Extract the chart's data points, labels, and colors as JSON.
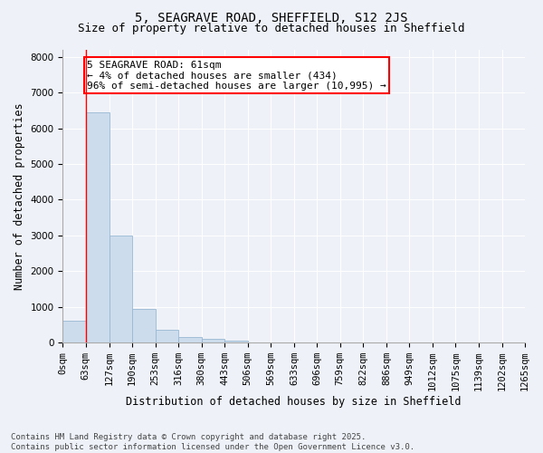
{
  "title1": "5, SEAGRAVE ROAD, SHEFFIELD, S12 2JS",
  "title2": "Size of property relative to detached houses in Sheffield",
  "xlabel": "Distribution of detached houses by size in Sheffield",
  "ylabel": "Number of detached properties",
  "bar_color": "#ccdcec",
  "bar_edge_color": "#99b8d4",
  "background_color": "#eef2f8",
  "plot_bg_color": "#eef2f8",
  "annotation_text": "5 SEAGRAVE ROAD: 61sqm\n← 4% of detached houses are smaller (434)\n96% of semi-detached houses are larger (10,995) →",
  "annotation_box_color": "white",
  "annotation_edge_color": "red",
  "red_line_x": 63,
  "ylim": [
    0,
    8200
  ],
  "yticks": [
    0,
    1000,
    2000,
    3000,
    4000,
    5000,
    6000,
    7000,
    8000
  ],
  "bin_edges": [
    0,
    63,
    127,
    190,
    253,
    316,
    380,
    443,
    506,
    569,
    633,
    696,
    759,
    822,
    886,
    949,
    1012,
    1075,
    1139,
    1202,
    1265
  ],
  "bar_heights": [
    600,
    6450,
    3000,
    950,
    350,
    150,
    90,
    50,
    5,
    2,
    1,
    0,
    0,
    0,
    0,
    0,
    0,
    0,
    0,
    0
  ],
  "footer_text": "Contains HM Land Registry data © Crown copyright and database right 2025.\nContains public sector information licensed under the Open Government Licence v3.0.",
  "title_fontsize": 10,
  "subtitle_fontsize": 9,
  "axis_label_fontsize": 8.5,
  "tick_fontsize": 7.5,
  "annot_fontsize": 8,
  "footer_fontsize": 6.5
}
